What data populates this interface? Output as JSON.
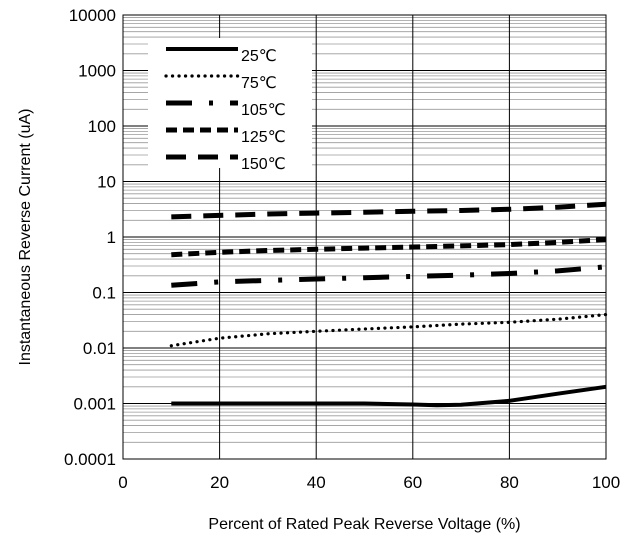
{
  "chart_data": {
    "type": "line",
    "xlabel": "Percent of Rated Peak Reverse Voltage (%)",
    "ylabel": "Instantaneous Reverse Current (uA)",
    "xlim": [
      0,
      100
    ],
    "ylim": [
      0.0001,
      10000
    ],
    "yscale": "log",
    "grid": true,
    "legend_position": "top-left",
    "x_ticks": [
      "0",
      "20",
      "40",
      "60",
      "80",
      "100"
    ],
    "y_ticks": [
      "0.0001",
      "0.001",
      "0.01",
      "0.1",
      "1",
      "10",
      "100",
      "1000",
      "10000"
    ],
    "series": [
      {
        "name": "25℃",
        "style": "solid",
        "x": [
          10,
          20,
          30,
          40,
          50,
          60,
          65,
          70,
          80,
          90,
          100
        ],
        "y": [
          0.001,
          0.001,
          0.001,
          0.001,
          0.001,
          0.00096,
          0.00093,
          0.00095,
          0.00112,
          0.0015,
          0.002
        ]
      },
      {
        "name": "75℃",
        "style": "dotted",
        "x": [
          10,
          20,
          30,
          40,
          50,
          60,
          70,
          80,
          90,
          100
        ],
        "y": [
          0.011,
          0.015,
          0.018,
          0.02,
          0.022,
          0.024,
          0.027,
          0.029,
          0.033,
          0.04
        ]
      },
      {
        "name": "105℃",
        "style": "dash-dot",
        "x": [
          10,
          20,
          30,
          40,
          50,
          60,
          70,
          80,
          90,
          100
        ],
        "y": [
          0.135,
          0.155,
          0.165,
          0.175,
          0.185,
          0.195,
          0.205,
          0.22,
          0.245,
          0.29
        ]
      },
      {
        "name": "125℃",
        "style": "short-dash",
        "x": [
          10,
          20,
          30,
          40,
          50,
          60,
          70,
          80,
          90,
          100
        ],
        "y": [
          0.48,
          0.53,
          0.57,
          0.6,
          0.63,
          0.66,
          0.69,
          0.73,
          0.8,
          0.9
        ]
      },
      {
        "name": "150℃",
        "style": "long-dash",
        "x": [
          10,
          20,
          30,
          40,
          50,
          60,
          70,
          80,
          90,
          100
        ],
        "y": [
          2.3,
          2.45,
          2.6,
          2.7,
          2.8,
          2.9,
          3.0,
          3.15,
          3.45,
          3.9
        ]
      }
    ]
  }
}
